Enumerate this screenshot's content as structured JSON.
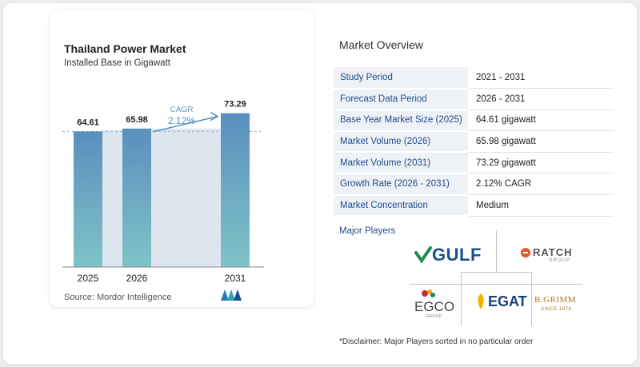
{
  "chart": {
    "title": "Thailand Power Market",
    "subtitle": "Installed Base in Gigawatt",
    "source": "Source:  Mordor Intelligence",
    "cagr_label": "CAGR",
    "cagr_value": "2.12%"
  },
  "chart_data": {
    "type": "bar",
    "title": "Thailand Power Market",
    "subtitle": "Installed Base in Gigawatt",
    "categories": [
      "2025",
      "2026",
      "2031"
    ],
    "values": [
      64.61,
      65.98,
      73.29
    ],
    "value_labels": [
      "64.61",
      "65.98",
      "73.29"
    ],
    "ylim": [
      0,
      80
    ],
    "grid": false,
    "annotations": [
      "CAGR",
      "2.12%"
    ]
  },
  "overview": {
    "title": "Market Overview",
    "rows": [
      {
        "key": "Study Period",
        "value": "2021 - 2031"
      },
      {
        "key": "Forecast Data Period",
        "value": "2026 - 2031"
      },
      {
        "key": "Base Year Market Size (2025)",
        "value": "64.61 gigawatt"
      },
      {
        "key": "Market Volume (2026)",
        "value": "65.98 gigawatt"
      },
      {
        "key": "Market Volume (2031)",
        "value": "73.29 gigawatt"
      },
      {
        "key": "Growth Rate (2026 - 2031)",
        "value": "2.12% CAGR"
      },
      {
        "key": "Market Concentration",
        "value": "Medium"
      }
    ]
  },
  "players": {
    "title": "Major Players",
    "logos": [
      {
        "name": "GULF",
        "icon": "gulf-logo"
      },
      {
        "name": "RATCH",
        "sub": "GROUP",
        "icon": "ratch-logo"
      },
      {
        "name": "EGCO",
        "sub": "GROUP",
        "icon": "egco-logo"
      },
      {
        "name": "EGAT",
        "icon": "egat-logo"
      },
      {
        "name": "B.GRIMM",
        "sub": "SINCE 1878",
        "icon": "bgrimm-logo"
      }
    ]
  },
  "disclaimer": "*Disclaimer: Major Players sorted in no particular order",
  "colors": {
    "bar_top": "#5a8fbf",
    "bar_bottom": "#7fc3c6",
    "band": "#dde6ef",
    "key_bg": "#eef1f5",
    "key_text": "#1e4d8c",
    "gulf_green": "#1f8a4c",
    "gulf_blue": "#1c4f8c",
    "ratch_orange": "#e0582a"
  }
}
